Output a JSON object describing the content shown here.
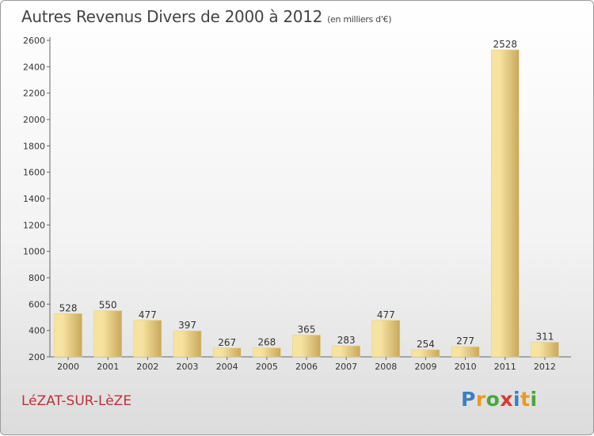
{
  "title": "Autres Revenus Divers de 2000 à 2012",
  "subtitle": "(en milliers d'€)",
  "city": "LéZAT-SUR-LèZE",
  "logo": {
    "letters": [
      "P",
      "r",
      "o",
      "x",
      "i",
      "t",
      "i"
    ],
    "colors": [
      "#3a7fc4",
      "#e89a23",
      "#4aa63c",
      "#d63a35",
      "#3a7fc4",
      "#e89a23",
      "#4aa63c"
    ]
  },
  "colors": {
    "bar_light": "#f7e3a0",
    "bar_dark": "#c8a85c",
    "accent": "#c0303c"
  },
  "chart_data": {
    "type": "bar",
    "categories": [
      "2000",
      "2001",
      "2002",
      "2003",
      "2004",
      "2005",
      "2006",
      "2007",
      "2008",
      "2009",
      "2010",
      "2011",
      "2012"
    ],
    "values": [
      528,
      550,
      477,
      397,
      267,
      268,
      365,
      283,
      477,
      254,
      277,
      2528,
      311
    ],
    "title": "Autres Revenus Divers de 2000 à 2012",
    "xlabel": "",
    "ylabel": "",
    "ylim": [
      200,
      2600
    ],
    "yticks": [
      200,
      400,
      600,
      800,
      1000,
      1200,
      1400,
      1600,
      1800,
      2000,
      2200,
      2400,
      2600
    ],
    "grid": false,
    "legend": "none"
  }
}
